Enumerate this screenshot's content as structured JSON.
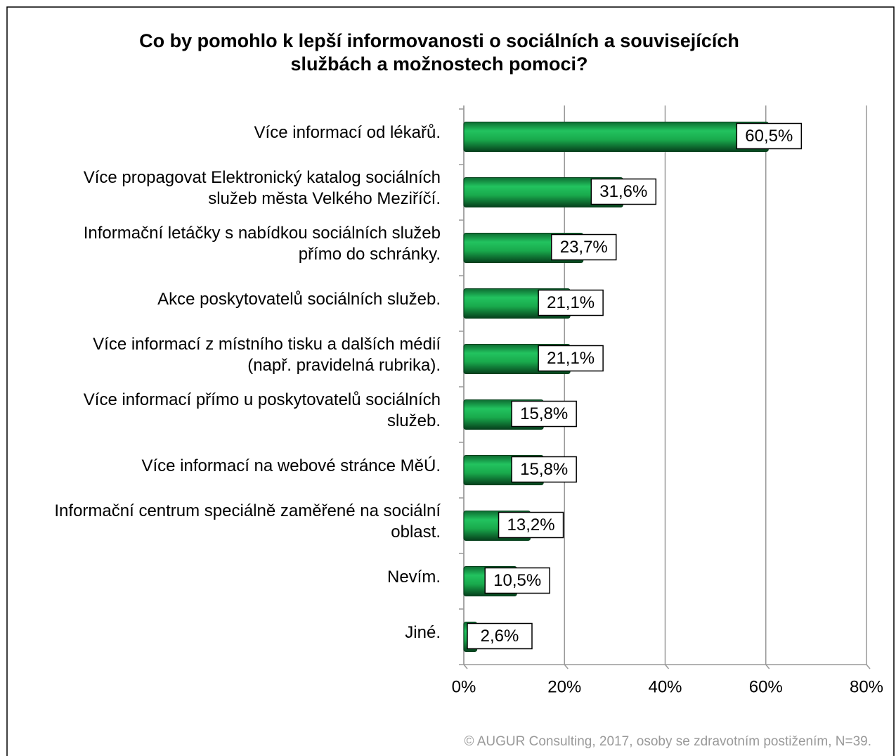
{
  "chart_data": {
    "type": "bar",
    "orientation": "horizontal",
    "title": [
      "Co by pomohlo k lepší informovanosti o sociálních a souvisejících",
      "službách a možnostech pomoci?"
    ],
    "categories": [
      [
        "Více informací od lékařů."
      ],
      [
        "Více propagovat Elektronický katalog sociálních",
        "služeb města Velkého Meziříčí."
      ],
      [
        "Informační letáčky s nabídkou sociálních služeb",
        "přímo do schránky."
      ],
      [
        "Akce poskytovatelů sociálních služeb."
      ],
      [
        "Více informací z místního tisku a dalších médií",
        "(např. pravidelná rubrika)."
      ],
      [
        "Více informací přímo u poskytovatelů sociálních",
        "služeb."
      ],
      [
        "Více informací na webové stránce MěÚ."
      ],
      [
        "Informační centrum speciálně zaměřené na sociální",
        "oblast."
      ],
      [
        "Nevím."
      ],
      [
        "Jiné."
      ]
    ],
    "values": [
      60.5,
      31.6,
      23.7,
      21.1,
      21.1,
      15.8,
      15.8,
      13.2,
      10.5,
      2.6
    ],
    "value_labels": [
      "60,5%",
      "31,6%",
      "23,7%",
      "21,1%",
      "21,1%",
      "15,8%",
      "15,8%",
      "13,2%",
      "10,5%",
      "2,6%"
    ],
    "color": "#19a94c",
    "xlim": [
      0,
      80
    ],
    "xticks": [
      {
        "value": 0,
        "label": "0%"
      },
      {
        "value": 20,
        "label": "20%"
      },
      {
        "value": 40,
        "label": "40%"
      },
      {
        "value": 60,
        "label": "60%"
      },
      {
        "value": 80,
        "label": "80%"
      }
    ],
    "grid": true,
    "footnote": "© AUGUR Consulting, 2017, osoby se zdravotním postižením, N=39."
  }
}
